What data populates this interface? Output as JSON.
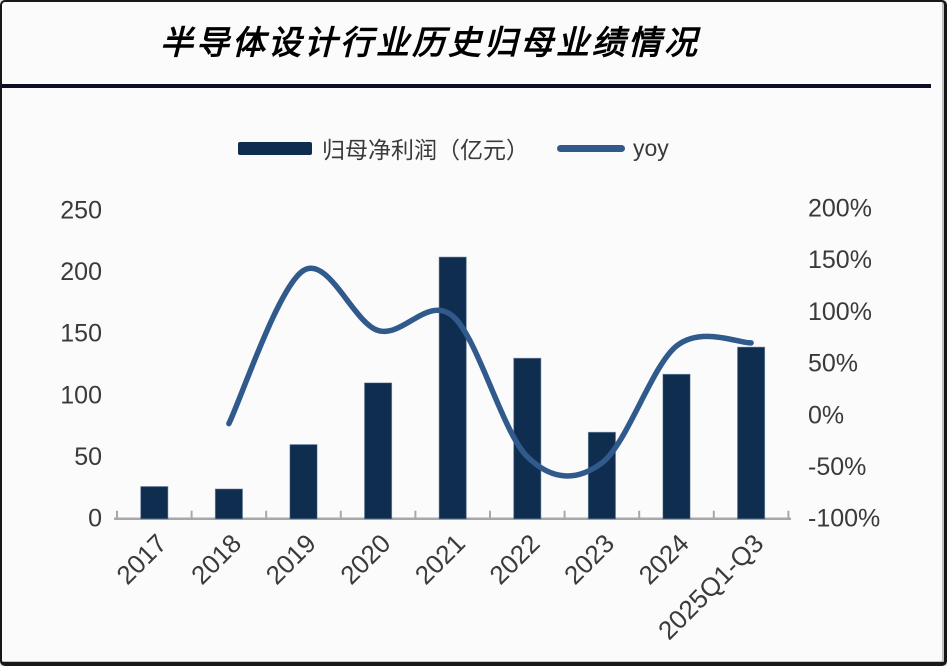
{
  "title": "半导体设计行业历史归母业绩情况",
  "legend": {
    "bars_label": "归母净利润（亿元）",
    "line_label": "yoy"
  },
  "colors": {
    "bar_fill": "#0F2D4E",
    "bar_edge": "#3A5A7E",
    "line": "#305A8C",
    "axis_line": "#A8A8A8",
    "tick_text": "#3A3A3A",
    "title_text": "#000000",
    "divider": "#0D0D26",
    "background": "#FBFBFB"
  },
  "chart_data": {
    "type": "bar",
    "subtype": "combo-bar-line-dual-axis",
    "title": "半导体设计行业历史归母业绩情况",
    "categories": [
      "2017",
      "2018",
      "2019",
      "2020",
      "2021",
      "2022",
      "2023",
      "2024",
      "2025Q1-Q3"
    ],
    "series": [
      {
        "name": "归母净利润（亿元）",
        "type": "bar",
        "axis": "left",
        "values": [
          26,
          24,
          60,
          110,
          212,
          130,
          70,
          117,
          139
        ]
      },
      {
        "name": "yoy",
        "type": "line",
        "axis": "right",
        "smooth": true,
        "values_pct": [
          null,
          -8,
          140,
          82,
          96,
          -40,
          -46,
          67,
          70
        ]
      }
    ],
    "left_axis": {
      "ticks": [
        250,
        200,
        150,
        100,
        50,
        0
      ],
      "range": [
        0,
        250
      ]
    },
    "right_axis": {
      "ticks_pct": [
        200,
        150,
        100,
        50,
        0,
        -50,
        -100
      ],
      "range_pct": [
        -100,
        200
      ]
    },
    "grid": "off",
    "legend_position": "top-center",
    "x_labels_rotated_deg": -45
  }
}
